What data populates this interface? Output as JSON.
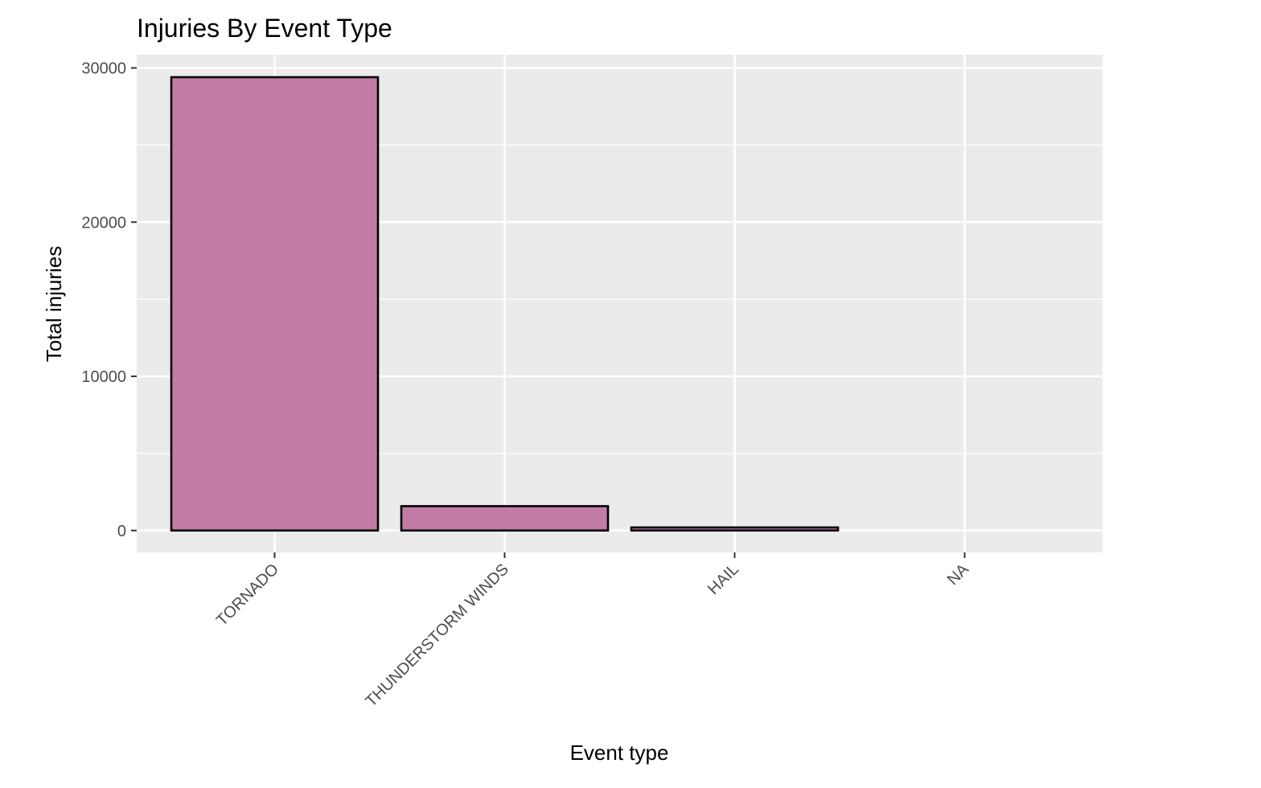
{
  "chart_data": {
    "type": "bar",
    "title": "Injuries By Event Type",
    "xlabel": "Event type",
    "ylabel": "Total injuries",
    "categories": [
      "TORNADO",
      "THUNDERSTORM WINDS",
      "HAIL",
      "NA"
    ],
    "values": [
      29400,
      1580,
      200,
      null
    ],
    "ylim": [
      -1420,
      30860
    ],
    "yticks": [
      0,
      10000,
      20000,
      30000
    ],
    "ytick_labels": [
      "0",
      "10000",
      "20000",
      "30000"
    ],
    "grid": true,
    "legend": "none",
    "colors": {
      "bar_fill": "#c27ba5",
      "bar_stroke": "#000000",
      "panel_background": "#ebebeb",
      "gridline": "#ffffff",
      "tick_text": "#4d4d4d"
    }
  }
}
